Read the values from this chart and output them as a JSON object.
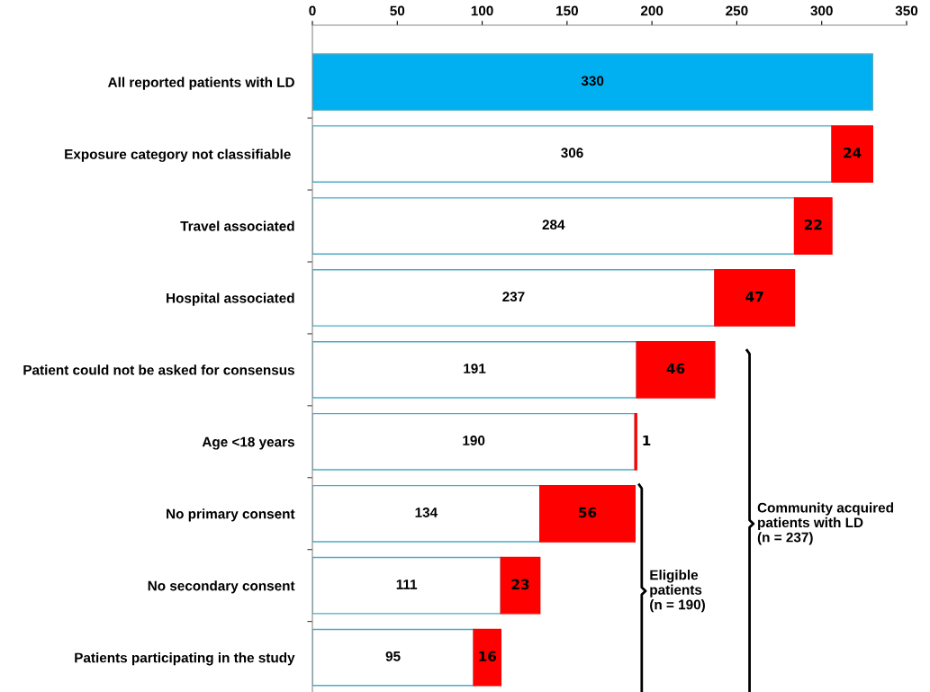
{
  "chart_data": {
    "type": "bar",
    "orientation": "horizontal",
    "stacked": true,
    "categories": [
      "All reported patients with LD",
      "Exposure category not classifiable ",
      "Travel associated",
      "Hospital associated",
      "Patient could not be asked for consensus",
      "Age <18 years",
      "No primary consent",
      "No secondary consent",
      "Patients participating in the study"
    ],
    "series": [
      {
        "colors": [
          "#00b0f0",
          "#ffffff",
          "#ffffff",
          "#ffffff",
          "#ffffff",
          "#ffffff",
          "#ffffff",
          "#ffffff",
          "#ffffff"
        ],
        "values": [
          330,
          306,
          284,
          237,
          191,
          190,
          134,
          111,
          95
        ]
      },
      {
        "color": "#ff0000",
        "values": [
          null,
          24,
          22,
          47,
          46,
          1,
          56,
          23,
          16
        ]
      }
    ],
    "xlim": [
      0,
      350
    ],
    "xticks": [
      0,
      50,
      100,
      150,
      200,
      250,
      300,
      350
    ],
    "data_labels": true,
    "grid": false,
    "legend": false,
    "annotations": [
      "Community acquired\npatients with LD\n(n = 237)",
      "Eligible\npatients\n(n = 190)"
    ]
  }
}
